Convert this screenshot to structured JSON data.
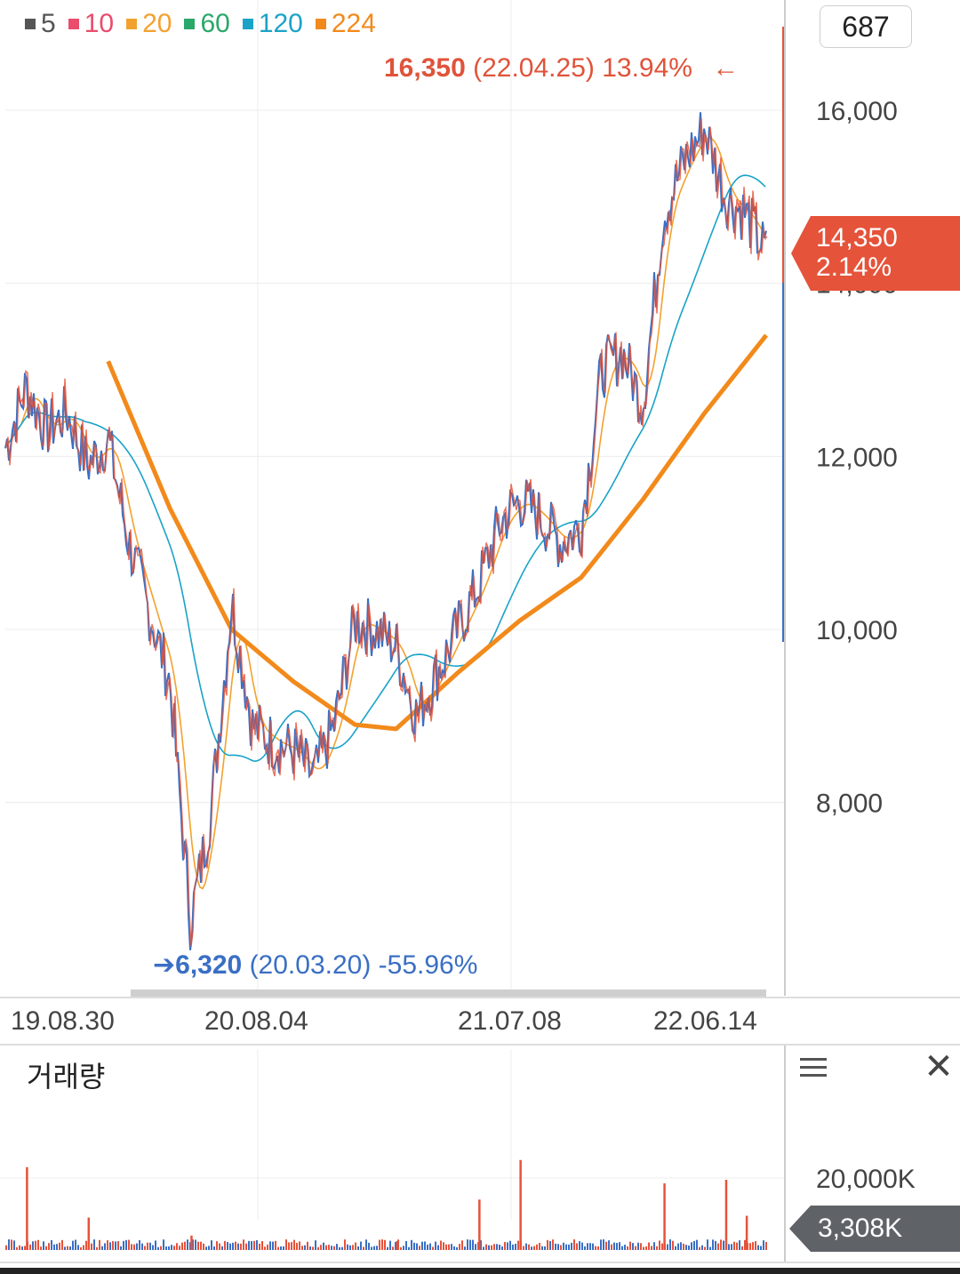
{
  "legend": [
    {
      "label": "5",
      "color": "#555555"
    },
    {
      "label": "10",
      "color": "#ea4c6c"
    },
    {
      "label": "20",
      "color": "#f3a12e"
    },
    {
      "label": "60",
      "color": "#2aa86a"
    },
    {
      "label": "120",
      "color": "#1aa3c8"
    },
    {
      "label": "224",
      "color": "#f28a1b"
    }
  ],
  "count_box": "687",
  "high": {
    "price": "16,350",
    "date": "(22.04.25)",
    "pct": "13.94%",
    "arrow": "←"
  },
  "low": {
    "arrow": "➔",
    "price": "6,320",
    "date": "(20.03.20)",
    "pct": "-55.96%"
  },
  "current": {
    "price": "14,350",
    "change": "2.14%"
  },
  "volume": {
    "title": "거래량",
    "axis_label": "20,000K",
    "current": "3,308K"
  },
  "colors": {
    "up": "#e5533a",
    "down": "#3a6fc4",
    "current_tag": "#e5533a",
    "volume_tag": "#5f6368"
  },
  "icons": {
    "menu": "menu-icon",
    "close": "close-icon"
  },
  "chart_data": {
    "type": "line",
    "title": "",
    "y_axis": {
      "ticks": [
        8000,
        10000,
        12000,
        14000,
        16000
      ],
      "tick_labels": [
        "8,000",
        "10,000",
        "12,000",
        "14,000",
        "16,000"
      ],
      "ylim": [
        6200,
        16600
      ]
    },
    "x_axis": {
      "tick_labels": [
        "19.08.30",
        "20.08.04",
        "21.07.08",
        "22.06.14"
      ]
    },
    "grid": true,
    "legend_position": "top-left",
    "price_series": [
      [
        "19.06",
        12100
      ],
      [
        "19.07",
        12800
      ],
      [
        "19.08",
        12300
      ],
      [
        "19.09",
        12500
      ],
      [
        "19.10",
        11900
      ],
      [
        "19.11",
        12200
      ],
      [
        "19.12",
        11000
      ],
      [
        "20.01",
        10200
      ],
      [
        "20.02",
        9400
      ],
      [
        "20.03",
        6600
      ],
      [
        "20.04",
        7900
      ],
      [
        "20.05",
        10300
      ],
      [
        "20.06",
        8900
      ],
      [
        "20.07",
        8700
      ],
      [
        "20.08",
        8600
      ],
      [
        "20.09",
        8300
      ],
      [
        "20.10",
        8900
      ],
      [
        "20.11",
        10100
      ],
      [
        "20.12",
        10000
      ],
      [
        "21.01",
        9800
      ],
      [
        "21.02",
        9000
      ],
      [
        "21.03",
        9500
      ],
      [
        "21.04",
        10000
      ],
      [
        "21.05",
        10500
      ],
      [
        "21.06",
        11200
      ],
      [
        "21.07",
        11500
      ],
      [
        "21.08",
        11300
      ],
      [
        "21.09",
        11000
      ],
      [
        "21.10",
        11200
      ],
      [
        "21.11",
        13000
      ],
      [
        "21.12",
        13200
      ],
      [
        "22.01",
        12600
      ],
      [
        "22.02",
        14800
      ],
      [
        "22.03",
        15400
      ],
      [
        "22.04",
        15800
      ],
      [
        "22.05",
        15000
      ],
      [
        "22.06",
        14800
      ],
      [
        "22.07",
        14350
      ]
    ],
    "ma224_series": [
      [
        "19.11",
        13100
      ],
      [
        "20.02",
        11400
      ],
      [
        "20.05",
        10000
      ],
      [
        "20.08",
        9400
      ],
      [
        "20.11",
        8900
      ],
      [
        "21.01",
        8850
      ],
      [
        "21.04",
        9500
      ],
      [
        "21.07",
        10100
      ],
      [
        "21.10",
        10600
      ],
      [
        "22.01",
        11500
      ],
      [
        "22.04",
        12500
      ],
      [
        "22.07",
        13400
      ]
    ],
    "annotations": [
      {
        "text": "16,350 (22.04.25) 13.94%",
        "kind": "high"
      },
      {
        "text": "6,320 (20.03.20) -55.96%",
        "kind": "low"
      }
    ],
    "volume": {
      "spikes": [
        [
          "19.07",
          23000
        ],
        [
          "19.10",
          9000
        ],
        [
          "20.03",
          4000
        ],
        [
          "21.01",
          2500
        ],
        [
          "21.05",
          14000
        ],
        [
          "21.07",
          25000
        ],
        [
          "22.02",
          18500
        ],
        [
          "22.05",
          19500
        ],
        [
          "22.06",
          9500
        ]
      ]
    }
  }
}
